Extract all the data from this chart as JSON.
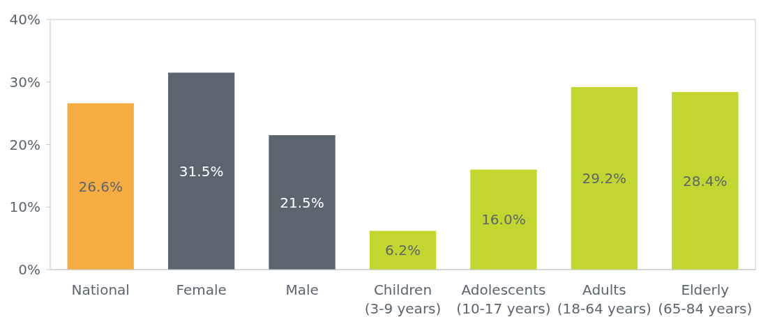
{
  "chart_data": {
    "type": "bar",
    "categories": [
      "National",
      "Female",
      "Male",
      "Children\n(3-9 years)",
      "Adolescents\n(10-17 years)",
      "Adults\n(18-64 years)",
      "Elderly\n(65-84 years)"
    ],
    "values": [
      26.6,
      31.5,
      21.5,
      6.2,
      16.0,
      29.2,
      28.4
    ],
    "colors": [
      "#f5ac40",
      "#5a6570",
      "#5a6570",
      "#c3d62f",
      "#c3d62f",
      "#c3d62f",
      "#c3d62f"
    ],
    "value_labels": [
      "26.6%",
      "31.5%",
      "21.5%",
      "6.2%",
      "16.0%",
      "29.2%",
      "28.4%"
    ],
    "ylim": [
      0,
      40
    ],
    "yticks": [
      {
        "value": 0,
        "label": "0%"
      },
      {
        "value": 10,
        "label": "10%"
      },
      {
        "value": 20,
        "label": "20%"
      },
      {
        "value": 30,
        "label": "30%"
      },
      {
        "value": 40,
        "label": "40%"
      }
    ],
    "grid": false
  }
}
